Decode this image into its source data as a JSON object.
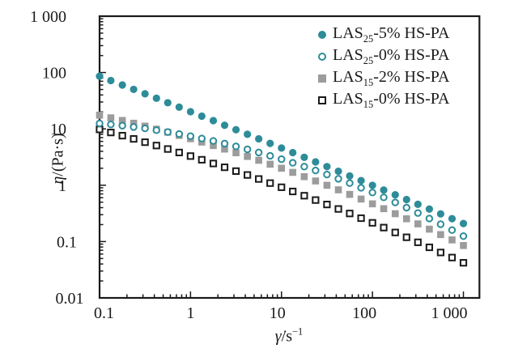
{
  "figure": {
    "background": "#ffffff",
    "frame_color": "#1a1a1a"
  },
  "chart_data": {
    "type": "scatter",
    "title": "",
    "grid": false,
    "legend_position": "top-right-inside",
    "xlabel": "γ̇/s⁻¹",
    "ylabel": "η/(Pa·s)",
    "axis_labels": {
      "y_symbol": "η",
      "y_rest": "/(Pa·s)",
      "x_symbol": "γ̇",
      "x_rest": "/s",
      "x_sup": "−1"
    },
    "xlim": [
      0.1,
      1500
    ],
    "ylim": [
      0.01,
      1000
    ],
    "x_scale": "log",
    "y_scale": "log",
    "x_ticks": {
      "values": [
        0.1,
        1,
        10,
        100,
        1000
      ],
      "labels": [
        "0.1",
        "1",
        "10",
        "100",
        "1 000"
      ]
    },
    "y_ticks": {
      "values": [
        1000,
        100,
        10,
        1,
        0.1,
        0.01
      ],
      "labels": [
        "1 000",
        "100",
        "10",
        "1",
        "0.1",
        "0.01"
      ]
    },
    "colors": {
      "teal": "#2e8c99",
      "gray": "#9c9c9c",
      "black": "#1a1a1a"
    },
    "x": [
      0.1,
      0.133,
      0.178,
      0.237,
      0.316,
      0.422,
      0.562,
      0.75,
      1,
      1.33,
      1.78,
      2.37,
      3.16,
      4.22,
      5.62,
      7.5,
      10,
      13.3,
      17.8,
      23.7,
      31.6,
      42.2,
      56.2,
      75,
      100,
      133,
      178,
      237,
      316,
      422,
      562,
      750,
      1000
    ],
    "series": [
      {
        "id": "las25-5pct",
        "label_prefix": "LAS",
        "label_sub": "25",
        "label_suffix": "-5% HS-PA",
        "name": "LAS25-5% HS-PA",
        "marker": "circle-filled",
        "color": "#2e8c99",
        "y": [
          86.1,
          72.0,
          60.1,
          50.2,
          41.9,
          35.0,
          29.1,
          24.3,
          20.2,
          16.8,
          14.0,
          11.6,
          9.66,
          8.02,
          6.65,
          5.52,
          4.57,
          3.79,
          3.13,
          2.59,
          2.14,
          1.77,
          1.46,
          1.21,
          0.996,
          0.821,
          0.676,
          0.557,
          0.458,
          0.377,
          0.31,
          0.255,
          0.209
        ]
      },
      {
        "id": "las25-0pct",
        "label_prefix": "LAS",
        "label_sub": "25",
        "label_suffix": "-0% HS-PA",
        "name": "LAS25-0% HS-PA",
        "marker": "circle-open",
        "color": "#2e8c99",
        "y": [
          12.5,
          12.0,
          11.4,
          10.8,
          10.2,
          9.48,
          8.8,
          8.11,
          7.43,
          6.76,
          6.11,
          5.48,
          4.89,
          4.33,
          3.81,
          3.33,
          2.9,
          2.5,
          2.14,
          1.83,
          1.55,
          1.3,
          1.09,
          0.9,
          0.742,
          0.608,
          0.495,
          0.4,
          0.321,
          0.256,
          0.203,
          0.16,
          0.125
        ]
      },
      {
        "id": "las15-2pct",
        "label_prefix": "LAS",
        "label_sub": "15",
        "label_suffix": "-2% HS-PA",
        "name": "LAS15-2% HS-PA",
        "marker": "square-filled",
        "color": "#9c9c9c",
        "y": [
          17.5,
          15.7,
          14.1,
          12.6,
          11.2,
          9.88,
          8.71,
          7.65,
          6.69,
          5.83,
          5.06,
          4.38,
          3.77,
          3.24,
          2.77,
          2.36,
          2.0,
          1.69,
          1.42,
          1.19,
          0.997,
          0.829,
          0.687,
          0.568,
          0.467,
          0.383,
          0.312,
          0.254,
          0.206,
          0.166,
          0.133,
          0.107,
          0.085
        ]
      },
      {
        "id": "las15-0pct",
        "label_prefix": "LAS",
        "label_sub": "15",
        "label_suffix": "-0% HS-PA",
        "name": "LAS15-0% HS-PA",
        "marker": "square-open",
        "color": "#1a1a1a",
        "y": [
          9.79,
          8.63,
          7.58,
          6.64,
          5.8,
          5.06,
          4.39,
          3.81,
          3.29,
          2.83,
          2.43,
          2.08,
          1.78,
          1.52,
          1.29,
          1.09,
          0.92,
          0.775,
          0.651,
          0.545,
          0.455,
          0.379,
          0.315,
          0.26,
          0.215,
          0.177,
          0.145,
          0.119,
          0.097,
          0.079,
          0.064,
          0.052,
          0.042
        ]
      }
    ]
  }
}
